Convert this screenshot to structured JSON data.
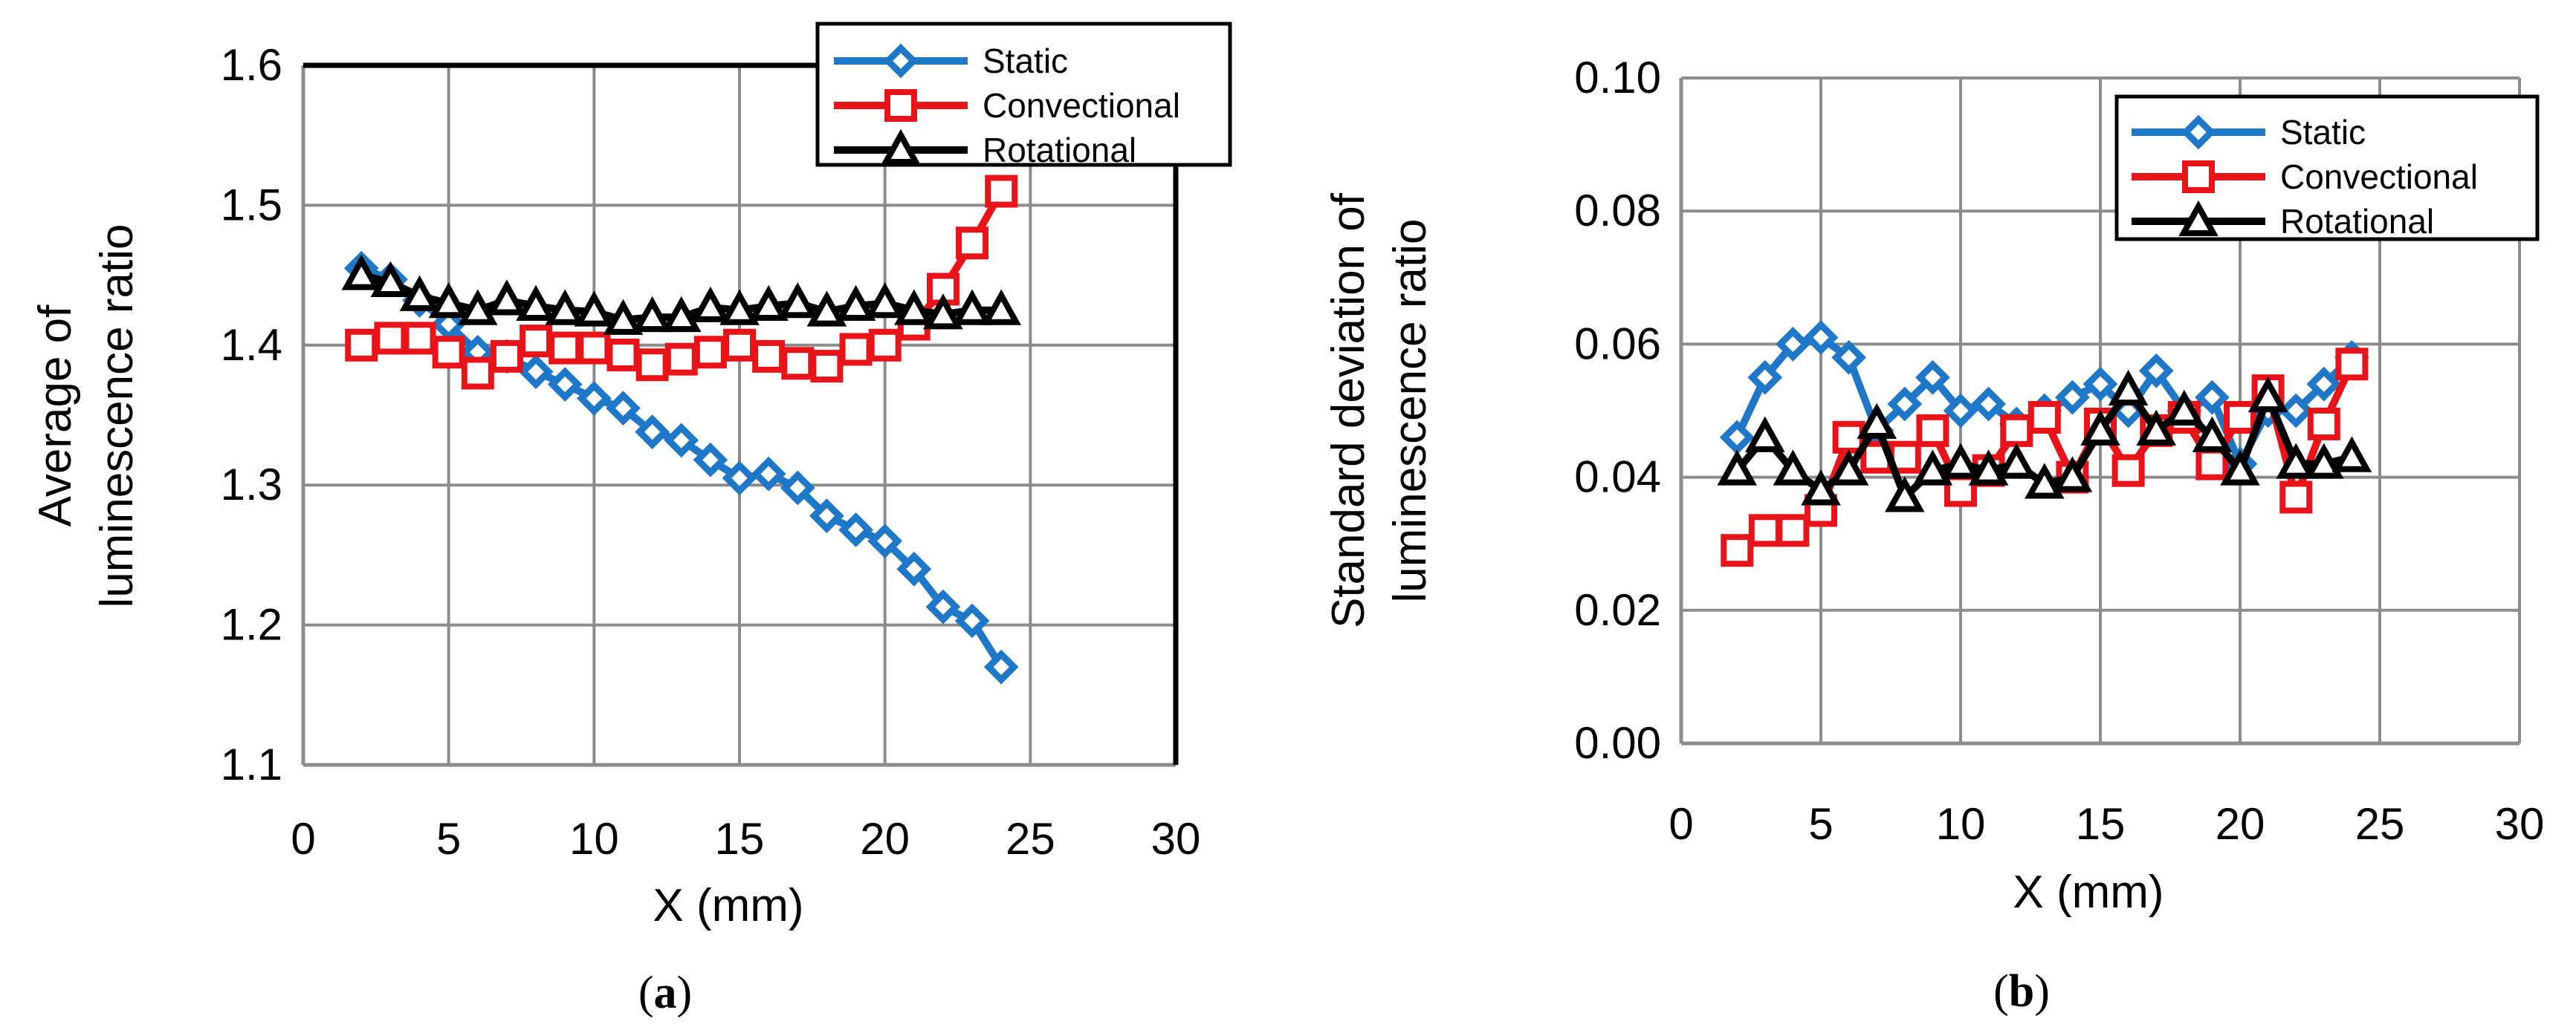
{
  "chart_data": [
    {
      "type": "line",
      "caption": "a",
      "xlabel": "X (mm)",
      "ylabel_lines": [
        "Average of",
        "luminescence ratio"
      ],
      "xlim": [
        0,
        30
      ],
      "ylim": [
        1.1,
        1.6
      ],
      "xticks": [
        "0",
        "5",
        "10",
        "15",
        "20",
        "25",
        "30"
      ],
      "yticks": [
        "1.1",
        "1.2",
        "1.3",
        "1.4",
        "1.5",
        "1.6"
      ],
      "grid": true,
      "legend_position": "top-right",
      "x": [
        2,
        3,
        4,
        5,
        6,
        7,
        8,
        9,
        10,
        11,
        12,
        13,
        14,
        15,
        16,
        17,
        18,
        19,
        20,
        21,
        22,
        23,
        24
      ],
      "series": [
        {
          "name": "Static",
          "color": "#1F77C8",
          "marker": "diamond",
          "values": [
            1.455,
            1.447,
            1.432,
            1.415,
            1.395,
            1.392,
            1.381,
            1.372,
            1.362,
            1.355,
            1.338,
            1.332,
            1.318,
            1.305,
            1.308,
            1.298,
            1.278,
            1.268,
            1.26,
            1.24,
            1.213,
            1.203,
            1.17
          ]
        },
        {
          "name": "Convectional",
          "color": "#E8141A",
          "marker": "square",
          "values": [
            1.4,
            1.405,
            1.405,
            1.395,
            1.38,
            1.392,
            1.403,
            1.398,
            1.398,
            1.393,
            1.386,
            1.39,
            1.395,
            1.4,
            1.392,
            1.387,
            1.385,
            1.397,
            1.4,
            1.415,
            1.44,
            1.473,
            1.51
          ]
        },
        {
          "name": "Rotational",
          "color": "#000000",
          "marker": "triangle",
          "values": [
            1.45,
            1.445,
            1.435,
            1.43,
            1.425,
            1.432,
            1.428,
            1.425,
            1.424,
            1.418,
            1.42,
            1.42,
            1.427,
            1.425,
            1.428,
            1.43,
            1.424,
            1.428,
            1.43,
            1.425,
            1.422,
            1.425,
            1.425
          ]
        }
      ]
    },
    {
      "type": "line",
      "caption": "b",
      "xlabel": "X (mm)",
      "ylabel_lines": [
        "Standard deviation of",
        "luminescence ratio"
      ],
      "xlim": [
        0,
        30
      ],
      "ylim": [
        0.0,
        0.1
      ],
      "xticks": [
        "0",
        "5",
        "10",
        "15",
        "20",
        "25",
        "30"
      ],
      "yticks": [
        "0.00",
        "0.02",
        "0.04",
        "0.06",
        "0.08",
        "0.10"
      ],
      "grid": true,
      "legend_position": "top-right",
      "x": [
        2,
        3,
        4,
        5,
        6,
        7,
        8,
        9,
        10,
        11,
        12,
        13,
        14,
        15,
        16,
        17,
        18,
        19,
        20,
        21,
        22,
        23,
        24
      ],
      "series": [
        {
          "name": "Static",
          "color": "#1F77C8",
          "marker": "diamond",
          "values": [
            0.046,
            0.055,
            0.06,
            0.061,
            0.058,
            0.047,
            0.051,
            0.055,
            0.05,
            0.051,
            0.048,
            0.05,
            0.052,
            0.054,
            0.05,
            0.056,
            0.05,
            0.052,
            0.042,
            0.05,
            0.05,
            0.054,
            0.058
          ]
        },
        {
          "name": "Convectional",
          "color": "#E8141A",
          "marker": "square",
          "values": [
            0.029,
            0.032,
            0.032,
            0.035,
            0.046,
            0.043,
            0.043,
            0.047,
            0.038,
            0.041,
            0.047,
            0.049,
            0.04,
            0.048,
            0.041,
            0.047,
            0.049,
            0.042,
            0.049,
            0.053,
            0.037,
            0.048,
            0.057
          ]
        },
        {
          "name": "Rotational",
          "color": "#000000",
          "marker": "triangle",
          "values": [
            0.041,
            0.046,
            0.041,
            0.038,
            0.041,
            0.048,
            0.037,
            0.041,
            0.042,
            0.041,
            0.042,
            0.039,
            0.04,
            0.047,
            0.053,
            0.047,
            0.05,
            0.046,
            0.041,
            0.052,
            0.042,
            0.042,
            0.043
          ]
        }
      ]
    }
  ]
}
